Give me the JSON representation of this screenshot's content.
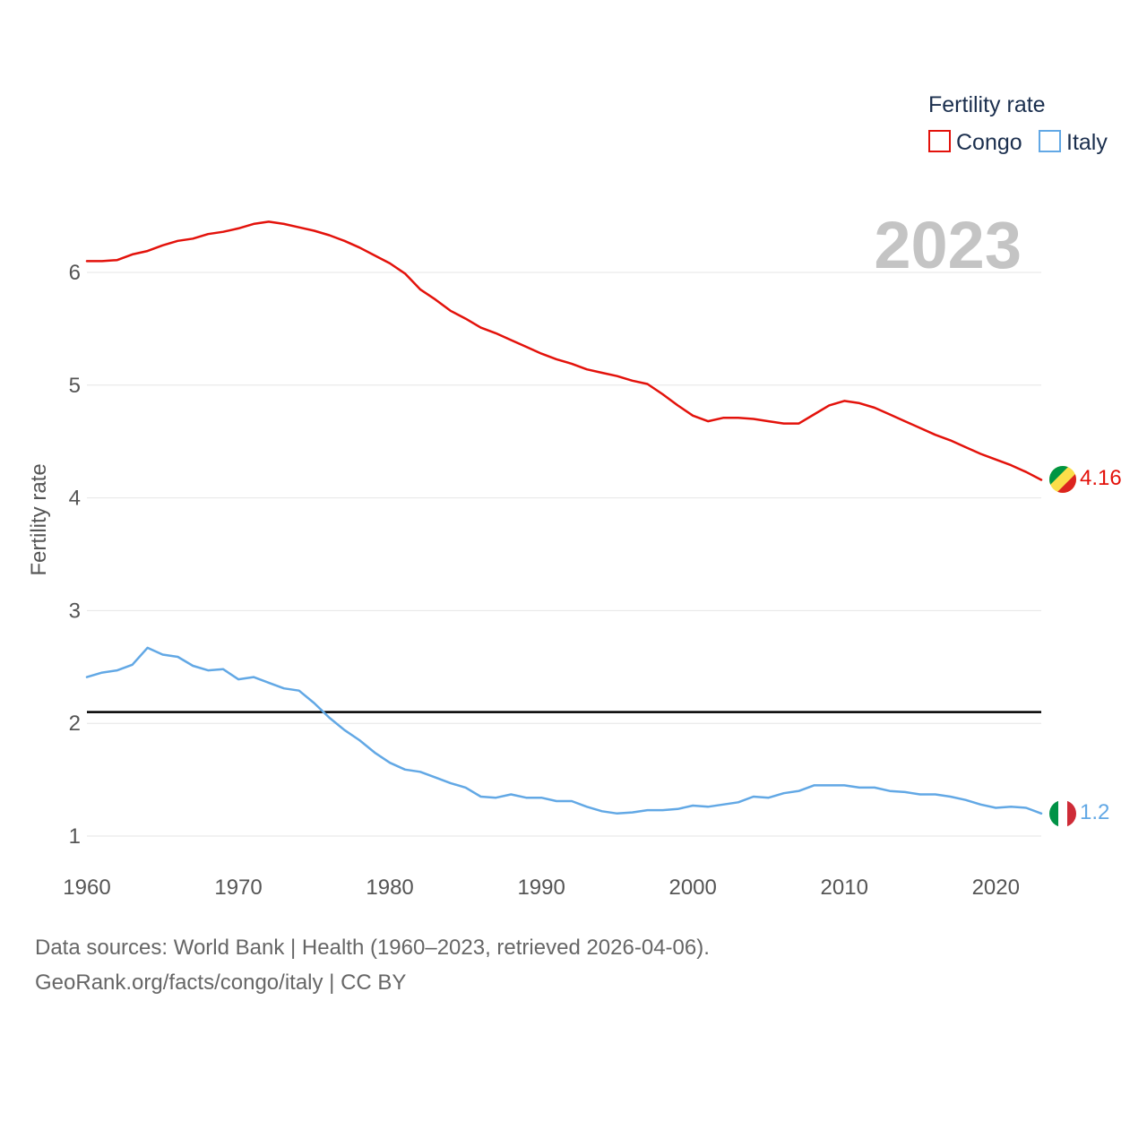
{
  "chart_data": {
    "type": "line",
    "title": "",
    "xlabel": "",
    "ylabel": "Fertility rate",
    "xlim": [
      1960,
      2023
    ],
    "ylim": [
      0.8,
      6.8
    ],
    "x_ticks": [
      1960,
      1970,
      1980,
      1990,
      2000,
      2010,
      2020
    ],
    "y_ticks": [
      1,
      2,
      3,
      4,
      5,
      6
    ],
    "grid": true,
    "year_label": "2023",
    "legend": {
      "title": "Fertility rate",
      "position": "top-right",
      "entries": [
        "Congo",
        "Italy"
      ]
    },
    "reference_line": {
      "y": 2.1,
      "color": "#000000"
    },
    "x": [
      1960,
      1961,
      1962,
      1963,
      1964,
      1965,
      1966,
      1967,
      1968,
      1969,
      1970,
      1971,
      1972,
      1973,
      1974,
      1975,
      1976,
      1977,
      1978,
      1979,
      1980,
      1981,
      1982,
      1983,
      1984,
      1985,
      1986,
      1987,
      1988,
      1989,
      1990,
      1991,
      1992,
      1993,
      1994,
      1995,
      1996,
      1997,
      1998,
      1999,
      2000,
      2001,
      2002,
      2003,
      2004,
      2005,
      2006,
      2007,
      2008,
      2009,
      2010,
      2011,
      2012,
      2013,
      2014,
      2015,
      2016,
      2017,
      2018,
      2019,
      2020,
      2021,
      2022,
      2023
    ],
    "series": [
      {
        "name": "Congo",
        "color": "#e3120b",
        "end_label": "4.16",
        "values": [
          6.1,
          6.1,
          6.11,
          6.16,
          6.19,
          6.24,
          6.28,
          6.3,
          6.34,
          6.36,
          6.39,
          6.43,
          6.45,
          6.43,
          6.4,
          6.37,
          6.33,
          6.28,
          6.22,
          6.15,
          6.08,
          5.99,
          5.85,
          5.76,
          5.66,
          5.59,
          5.51,
          5.46,
          5.4,
          5.34,
          5.28,
          5.23,
          5.19,
          5.14,
          5.11,
          5.08,
          5.04,
          5.01,
          4.92,
          4.82,
          4.73,
          4.68,
          4.71,
          4.71,
          4.7,
          4.68,
          4.66,
          4.66,
          4.74,
          4.82,
          4.86,
          4.84,
          4.8,
          4.74,
          4.68,
          4.62,
          4.56,
          4.51,
          4.45,
          4.39,
          4.34,
          4.29,
          4.23,
          4.16
        ]
      },
      {
        "name": "Italy",
        "color": "#62a8e5",
        "end_label": "1.2",
        "values": [
          2.41,
          2.45,
          2.47,
          2.52,
          2.67,
          2.61,
          2.59,
          2.51,
          2.47,
          2.48,
          2.39,
          2.41,
          2.36,
          2.31,
          2.29,
          2.18,
          2.05,
          1.94,
          1.85,
          1.74,
          1.65,
          1.59,
          1.57,
          1.52,
          1.47,
          1.43,
          1.35,
          1.34,
          1.37,
          1.34,
          1.34,
          1.31,
          1.31,
          1.26,
          1.22,
          1.2,
          1.21,
          1.23,
          1.23,
          1.24,
          1.27,
          1.26,
          1.28,
          1.3,
          1.35,
          1.34,
          1.38,
          1.4,
          1.45,
          1.45,
          1.45,
          1.43,
          1.43,
          1.4,
          1.39,
          1.37,
          1.37,
          1.35,
          1.32,
          1.28,
          1.25,
          1.26,
          1.25,
          1.2
        ]
      }
    ]
  },
  "source": {
    "line1": "Data sources: World Bank | Health (1960–2023, retrieved 2026-04-06).",
    "line2": "GeoRank.org/facts/congo/italy | CC BY"
  }
}
